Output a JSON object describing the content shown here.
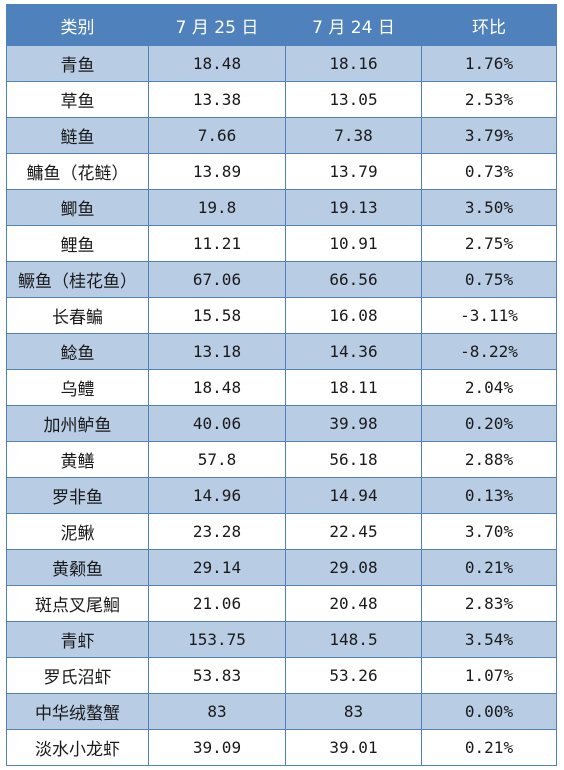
{
  "colors": {
    "header": "#4f81bd",
    "band": "#b8cce4",
    "border": "#4f81bd"
  },
  "table": {
    "headers": [
      "类别",
      "7 月 25 日",
      "7 月 24 日",
      "环比"
    ],
    "rows": [
      [
        "青鱼",
        "18.48",
        "18.16",
        "1.76%"
      ],
      [
        "草鱼",
        "13.38",
        "13.05",
        "2.53%"
      ],
      [
        "鲢鱼",
        "7.66",
        "7.38",
        "3.79%"
      ],
      [
        "鳙鱼（花鲢）",
        "13.89",
        "13.79",
        "0.73%"
      ],
      [
        "鲫鱼",
        "19.8",
        "19.13",
        "3.50%"
      ],
      [
        "鲤鱼",
        "11.21",
        "10.91",
        "2.75%"
      ],
      [
        "鳜鱼（桂花鱼）",
        "67.06",
        "66.56",
        "0.75%"
      ],
      [
        "长春鳊",
        "15.58",
        "16.08",
        "-3.11%"
      ],
      [
        "鲶鱼",
        "13.18",
        "14.36",
        "-8.22%"
      ],
      [
        "乌鳢",
        "18.48",
        "18.11",
        "2.04%"
      ],
      [
        "加州鲈鱼",
        "40.06",
        "39.98",
        "0.20%"
      ],
      [
        "黄鳝",
        "57.8",
        "56.18",
        "2.88%"
      ],
      [
        "罗非鱼",
        "14.96",
        "14.94",
        "0.13%"
      ],
      [
        "泥鳅",
        "23.28",
        "22.45",
        "3.70%"
      ],
      [
        "黄颡鱼",
        "29.14",
        "29.08",
        "0.21%"
      ],
      [
        "斑点叉尾鮰",
        "21.06",
        "20.48",
        "2.83%"
      ],
      [
        "青虾",
        "153.75",
        "148.5",
        "3.54%"
      ],
      [
        "罗氏沼虾",
        "53.83",
        "53.26",
        "1.07%"
      ],
      [
        "中华绒螯蟹",
        "83",
        "83",
        "0.00%"
      ],
      [
        "淡水小龙虾",
        "39.09",
        "39.01",
        "0.21%"
      ]
    ]
  }
}
